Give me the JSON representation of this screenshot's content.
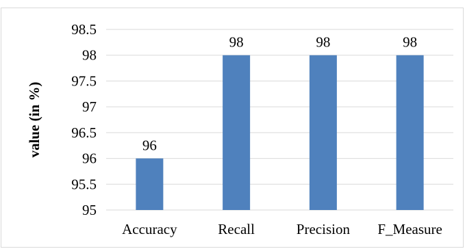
{
  "chart_data": {
    "type": "bar",
    "title": "",
    "xlabel": "",
    "ylabel": "value (in %)",
    "categories": [
      "Accuracy",
      "Recall",
      "Precision",
      "F_Measure"
    ],
    "values": [
      96,
      98,
      98,
      98
    ],
    "data_labels": [
      "96",
      "98",
      "98",
      "98"
    ],
    "ylim": [
      95,
      98.5
    ],
    "yticks": [
      "95",
      "95.5",
      "96",
      "96.5",
      "97",
      "97.5",
      "98",
      "98.5"
    ],
    "grid": true,
    "legend": "none",
    "bar_color": "#4f81bd",
    "grid_color": "#d9d9d9"
  }
}
